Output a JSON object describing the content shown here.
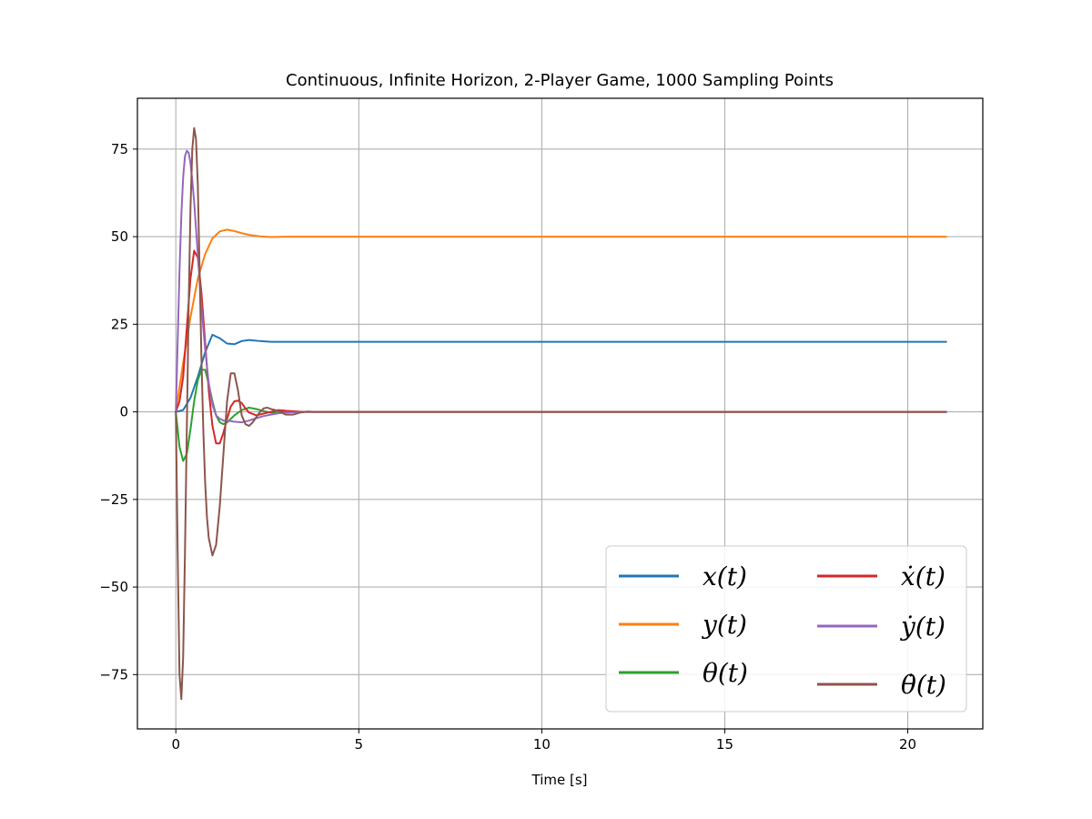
{
  "chart_data": {
    "type": "line",
    "title": "Continuous, Infinite Horizon, 2-Player Game, 1000 Sampling Points",
    "xlabel": "Time [s]",
    "ylabel": "",
    "xlim": [
      -1.05,
      22.05
    ],
    "ylim": [
      -90.5,
      89.5
    ],
    "xticks": [
      0,
      5,
      10,
      15,
      20
    ],
    "xtick_labels": [
      "0",
      "5",
      "10",
      "15",
      "20"
    ],
    "yticks": [
      -75,
      -50,
      -25,
      0,
      25,
      50,
      75
    ],
    "ytick_labels": [
      "−75",
      "−50",
      "−25",
      "0",
      "25",
      "50",
      "75"
    ],
    "grid": true,
    "legend": {
      "position": "bottom-right",
      "columns": 2
    },
    "series": [
      {
        "name": "x(t)",
        "color": "#1f77b4",
        "x": [
          0,
          0.2,
          0.4,
          0.6,
          0.8,
          1.0,
          1.2,
          1.4,
          1.6,
          1.8,
          2.0,
          2.3,
          2.6,
          3.0,
          3.5,
          4.0,
          21.05
        ],
        "y": [
          0,
          0.5,
          4,
          10,
          17,
          22,
          21,
          19.5,
          19.3,
          20.2,
          20.5,
          20.2,
          20,
          20,
          20,
          20,
          20
        ]
      },
      {
        "name": "y(t)",
        "color": "#ff7f0e",
        "x": [
          0,
          0.2,
          0.4,
          0.6,
          0.8,
          1.0,
          1.2,
          1.4,
          1.6,
          1.8,
          2.0,
          2.3,
          2.6,
          3.0,
          3.5,
          4.0,
          21.05
        ],
        "y": [
          0,
          14,
          27,
          38,
          45,
          49.5,
          51.5,
          52,
          51.6,
          51,
          50.5,
          50.1,
          49.9,
          50,
          50,
          50,
          50
        ]
      },
      {
        "name": "θ(t)",
        "color": "#2ca02c",
        "x": [
          0,
          0.1,
          0.2,
          0.3,
          0.4,
          0.5,
          0.6,
          0.7,
          0.8,
          0.9,
          1.0,
          1.1,
          1.2,
          1.3,
          1.4,
          1.6,
          1.8,
          2.0,
          2.2,
          2.4,
          2.6,
          2.8,
          3.0,
          3.5,
          4.0,
          21.05
        ],
        "y": [
          0,
          -10,
          -14,
          -12,
          -5,
          3,
          9,
          12,
          12,
          8,
          3,
          -1,
          -3,
          -3.5,
          -3,
          -1,
          0.5,
          1.2,
          0.8,
          0.2,
          -0.2,
          -0.2,
          0,
          0,
          0,
          0
        ]
      },
      {
        "name": "ẋ(t)",
        "color": "#d62728",
        "x": [
          0,
          0.1,
          0.2,
          0.3,
          0.4,
          0.5,
          0.6,
          0.7,
          0.8,
          0.9,
          1.0,
          1.1,
          1.2,
          1.3,
          1.4,
          1.5,
          1.6,
          1.7,
          1.8,
          1.9,
          2.0,
          2.2,
          2.4,
          2.6,
          2.8,
          3.0,
          3.5,
          4.0,
          21.05
        ],
        "y": [
          0,
          3,
          10,
          24,
          38,
          46,
          44,
          34,
          20,
          6,
          -4,
          -9,
          -9,
          -6,
          -2,
          1.5,
          3,
          3.2,
          2.5,
          1,
          -0.2,
          -1,
          -0.5,
          0,
          0.5,
          0.3,
          0,
          0,
          0
        ]
      },
      {
        "name": "ẏ(t)",
        "color": "#9467bd",
        "x": [
          0,
          0.05,
          0.1,
          0.15,
          0.2,
          0.25,
          0.3,
          0.35,
          0.4,
          0.45,
          0.5,
          0.6,
          0.7,
          0.8,
          0.9,
          1.0,
          1.1,
          1.2,
          1.3,
          1.4,
          1.6,
          1.8,
          2.0,
          2.2,
          2.4,
          2.6,
          2.8,
          3.0,
          3.5,
          4.0,
          21.05
        ],
        "y": [
          0,
          20,
          40,
          56,
          67,
          73,
          74.5,
          74,
          71,
          66,
          60,
          45,
          30,
          18,
          8,
          2,
          -1,
          -2,
          -2.5,
          -2.5,
          -2.8,
          -3,
          -2.5,
          -1.8,
          -1.2,
          -0.8,
          -0.4,
          -0.2,
          0,
          0,
          0
        ]
      },
      {
        "name": "θ̇(t)",
        "color": "#8c564b",
        "x": [
          0,
          0.05,
          0.1,
          0.15,
          0.2,
          0.25,
          0.3,
          0.35,
          0.4,
          0.45,
          0.5,
          0.55,
          0.6,
          0.65,
          0.7,
          0.75,
          0.8,
          0.85,
          0.9,
          1.0,
          1.1,
          1.2,
          1.3,
          1.4,
          1.5,
          1.6,
          1.7,
          1.8,
          1.9,
          2.0,
          2.1,
          2.2,
          2.3,
          2.4,
          2.5,
          2.6,
          2.8,
          3.0,
          3.2,
          3.4,
          3.6,
          3.8,
          4.0,
          21.05
        ],
        "y": [
          0,
          -40,
          -75,
          -82,
          -70,
          -40,
          -5,
          30,
          58,
          75,
          81,
          78,
          65,
          40,
          15,
          -5,
          -20,
          -30,
          -36,
          -41,
          -38,
          -27,
          -12,
          3,
          11,
          11,
          6,
          -1,
          -3.5,
          -4,
          -3,
          -1.5,
          0,
          1,
          1.2,
          0.8,
          0.3,
          -0.8,
          -0.8,
          -0.2,
          0.1,
          0,
          0,
          0
        ]
      }
    ]
  }
}
